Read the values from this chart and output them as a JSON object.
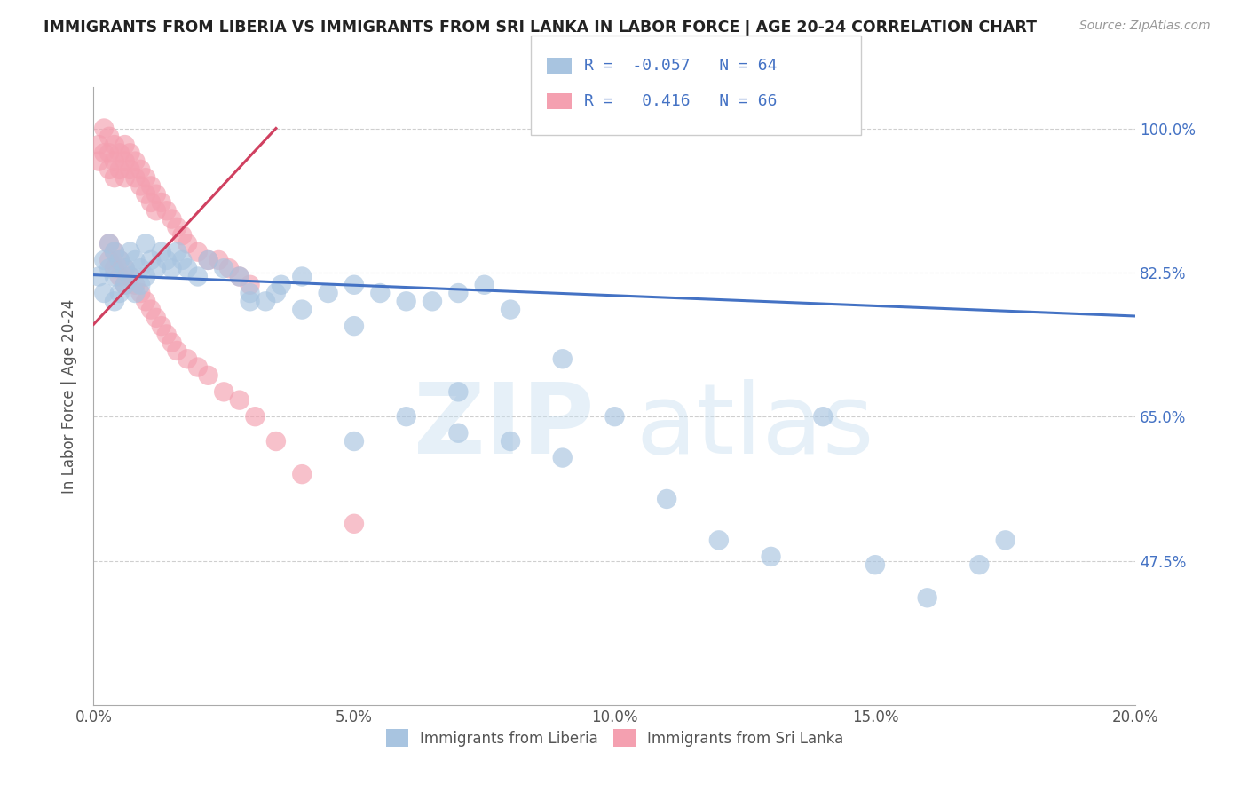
{
  "title": "IMMIGRANTS FROM LIBERIA VS IMMIGRANTS FROM SRI LANKA IN LABOR FORCE | AGE 20-24 CORRELATION CHART",
  "source": "Source: ZipAtlas.com",
  "ylabel": "In Labor Force | Age 20-24",
  "xlim": [
    0.0,
    0.2
  ],
  "ylim": [
    0.3,
    1.05
  ],
  "ytick_labels": [
    "47.5%",
    "65.0%",
    "82.5%",
    "100.0%"
  ],
  "ytick_values": [
    0.475,
    0.65,
    0.825,
    1.0
  ],
  "xtick_labels": [
    "0.0%",
    "5.0%",
    "10.0%",
    "15.0%",
    "20.0%"
  ],
  "xtick_values": [
    0.0,
    0.05,
    0.1,
    0.15,
    0.2
  ],
  "legend_labels": [
    "Immigrants from Liberia",
    "Immigrants from Sri Lanka"
  ],
  "R_liberia": -0.057,
  "N_liberia": 64,
  "R_srilanka": 0.416,
  "N_srilanka": 66,
  "color_liberia": "#a8c4e0",
  "color_srilanka": "#f4a0b0",
  "line_color_liberia": "#4472c4",
  "line_color_srilanka": "#d04060",
  "background_color": "#ffffff",
  "grid_color": "#bbbbbb",
  "title_color": "#222222",
  "liberia_x": [
    0.001,
    0.002,
    0.002,
    0.003,
    0.003,
    0.004,
    0.004,
    0.004,
    0.005,
    0.005,
    0.006,
    0.006,
    0.007,
    0.007,
    0.008,
    0.008,
    0.009,
    0.009,
    0.01,
    0.01,
    0.011,
    0.012,
    0.013,
    0.014,
    0.015,
    0.016,
    0.017,
    0.018,
    0.02,
    0.022,
    0.025,
    0.028,
    0.03,
    0.033,
    0.036,
    0.04,
    0.045,
    0.05,
    0.055,
    0.06,
    0.065,
    0.07,
    0.075,
    0.08,
    0.03,
    0.035,
    0.04,
    0.05,
    0.06,
    0.07,
    0.08,
    0.09,
    0.1,
    0.11,
    0.12,
    0.13,
    0.14,
    0.15,
    0.16,
    0.17,
    0.175,
    0.05,
    0.07,
    0.09
  ],
  "liberia_y": [
    0.82,
    0.84,
    0.8,
    0.83,
    0.86,
    0.85,
    0.82,
    0.79,
    0.84,
    0.8,
    0.83,
    0.81,
    0.85,
    0.82,
    0.84,
    0.8,
    0.83,
    0.81,
    0.86,
    0.82,
    0.84,
    0.83,
    0.85,
    0.84,
    0.83,
    0.85,
    0.84,
    0.83,
    0.82,
    0.84,
    0.83,
    0.82,
    0.8,
    0.79,
    0.81,
    0.82,
    0.8,
    0.81,
    0.8,
    0.79,
    0.79,
    0.8,
    0.81,
    0.78,
    0.79,
    0.8,
    0.78,
    0.76,
    0.65,
    0.63,
    0.62,
    0.6,
    0.65,
    0.55,
    0.5,
    0.48,
    0.65,
    0.47,
    0.43,
    0.47,
    0.5,
    0.62,
    0.68,
    0.72
  ],
  "srilanka_x": [
    0.001,
    0.001,
    0.002,
    0.002,
    0.003,
    0.003,
    0.003,
    0.004,
    0.004,
    0.004,
    0.005,
    0.005,
    0.006,
    0.006,
    0.006,
    0.007,
    0.007,
    0.008,
    0.008,
    0.009,
    0.009,
    0.01,
    0.01,
    0.011,
    0.011,
    0.012,
    0.012,
    0.013,
    0.014,
    0.015,
    0.016,
    0.017,
    0.018,
    0.02,
    0.022,
    0.024,
    0.026,
    0.028,
    0.03,
    0.003,
    0.003,
    0.004,
    0.004,
    0.005,
    0.005,
    0.006,
    0.006,
    0.007,
    0.008,
    0.009,
    0.01,
    0.011,
    0.012,
    0.013,
    0.014,
    0.015,
    0.016,
    0.018,
    0.02,
    0.022,
    0.025,
    0.028,
    0.031,
    0.035,
    0.04,
    0.05
  ],
  "srilanka_y": [
    0.98,
    0.96,
    1.0,
    0.97,
    0.99,
    0.97,
    0.95,
    0.98,
    0.96,
    0.94,
    0.97,
    0.95,
    0.98,
    0.96,
    0.94,
    0.97,
    0.95,
    0.96,
    0.94,
    0.95,
    0.93,
    0.94,
    0.92,
    0.93,
    0.91,
    0.92,
    0.9,
    0.91,
    0.9,
    0.89,
    0.88,
    0.87,
    0.86,
    0.85,
    0.84,
    0.84,
    0.83,
    0.82,
    0.81,
    0.86,
    0.84,
    0.85,
    0.83,
    0.84,
    0.82,
    0.83,
    0.81,
    0.82,
    0.81,
    0.8,
    0.79,
    0.78,
    0.77,
    0.76,
    0.75,
    0.74,
    0.73,
    0.72,
    0.71,
    0.7,
    0.68,
    0.67,
    0.65,
    0.62,
    0.58,
    0.52
  ]
}
